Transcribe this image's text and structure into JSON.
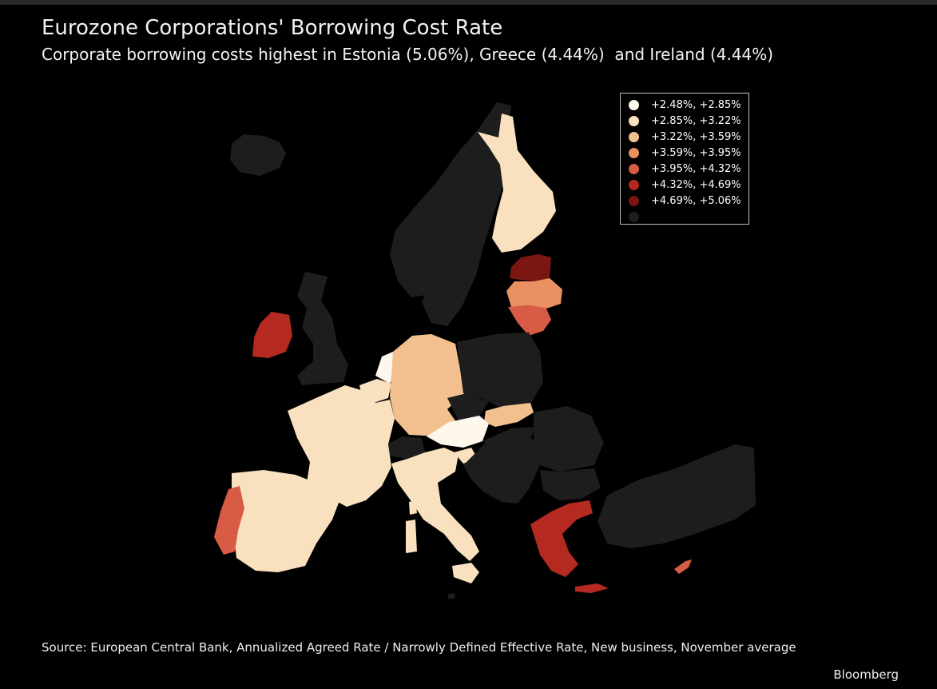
{
  "title": "Eurozone Corporations' Borrowing Cost Rate",
  "subtitle": "Corporate borrowing costs highest in Estonia (5.06%), Greece (4.44%)  and Ireland (4.44%)",
  "legend": [
    {
      "label": "+2.48%, +2.85%",
      "color": "#fdf7ec"
    },
    {
      "label": "+2.85%, +3.22%",
      "color": "#f9e1bf"
    },
    {
      "label": "+3.22%, +3.59%",
      "color": "#f1c08e"
    },
    {
      "label": "+3.59%, +3.95%",
      "color": "#e99160"
    },
    {
      "label": "+3.95%, +4.32%",
      "color": "#d85c45"
    },
    {
      "label": "+4.32%, +4.69%",
      "color": "#b42a20"
    },
    {
      "label": "+4.69%, +5.06%",
      "color": "#7a1712"
    },
    {
      "label": "",
      "color": "#1d1d1d"
    }
  ],
  "source": "Source: European Central Bank, Annualized Agreed Rate / Narrowly Defined Effective Rate, New business, November average",
  "brand": "Bloomberg"
}
